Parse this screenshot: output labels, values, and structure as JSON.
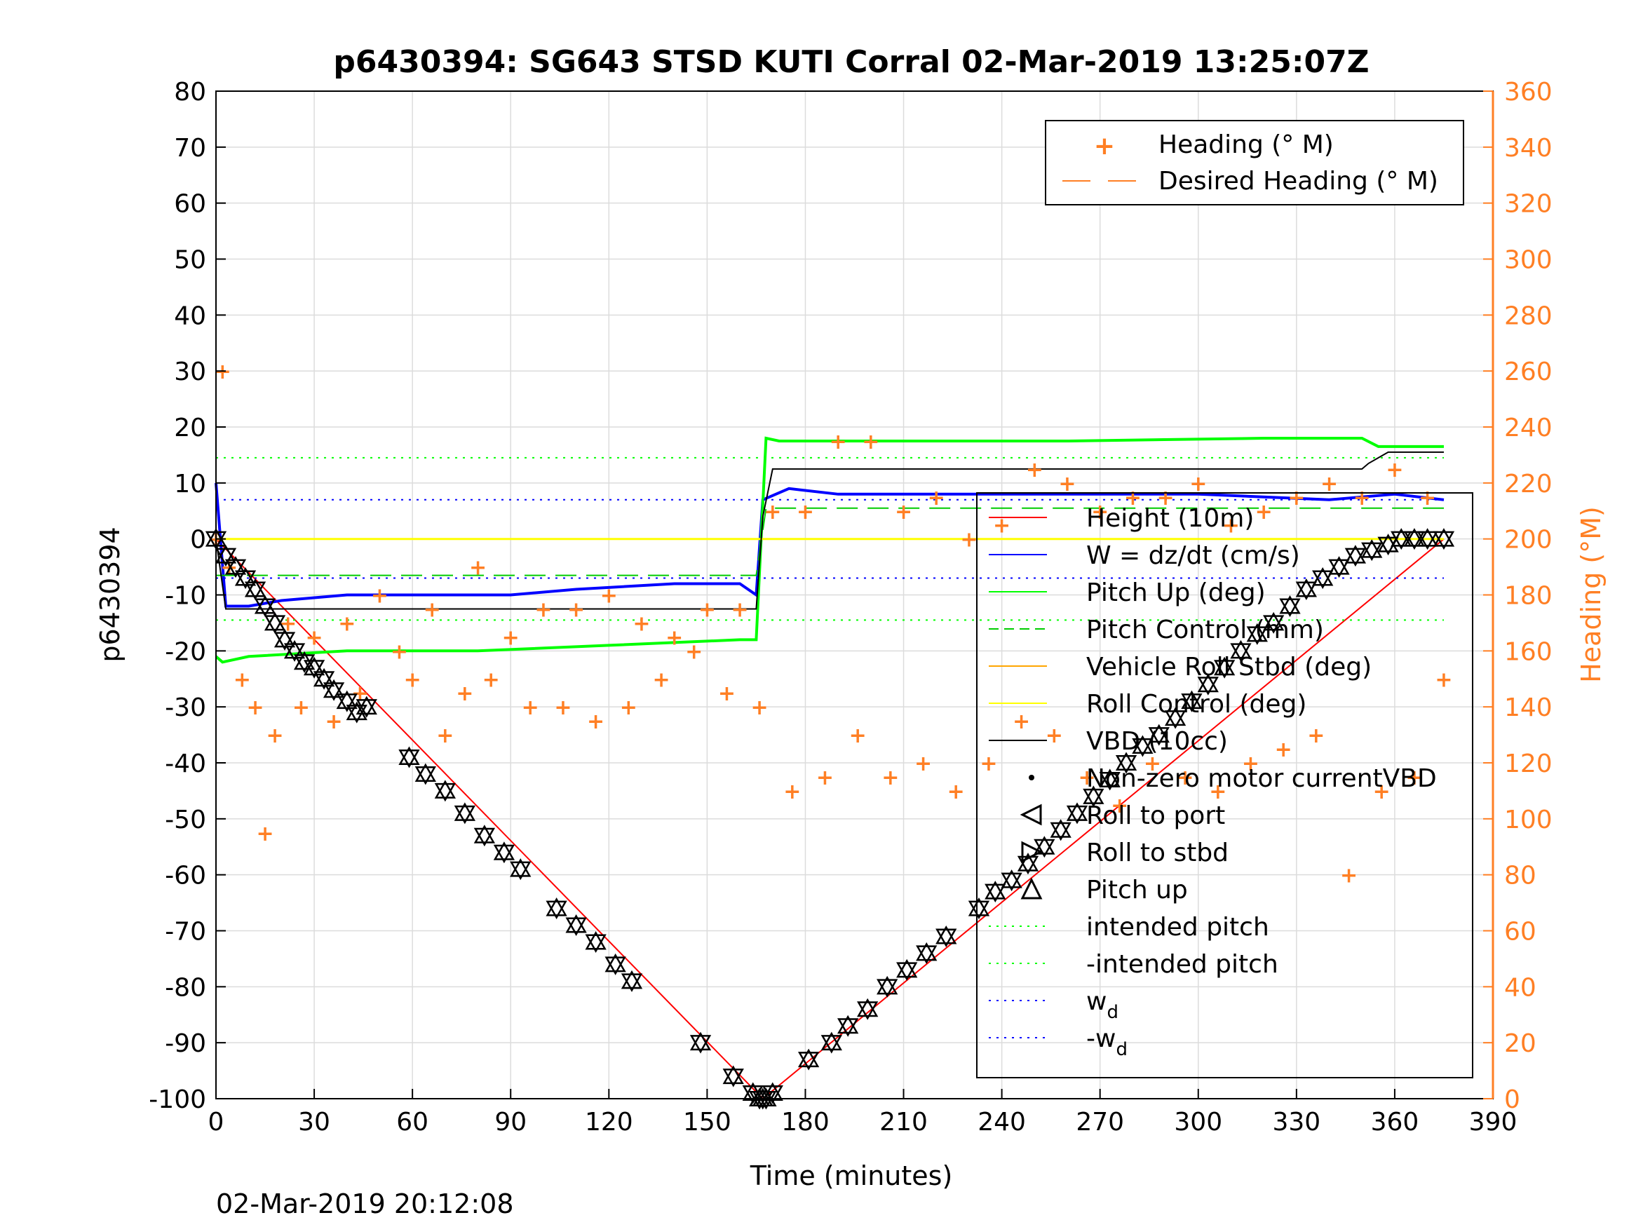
{
  "chart_data": {
    "type": "line",
    "title": "p6430394: SG643 STSD KUTI Corral 02-Mar-2019 13:25:07Z",
    "xlabel": "Time (minutes)",
    "ylabel_left": "p6430394",
    "ylabel_right": "Heading (°M)",
    "footer_timestamp": "02-Mar-2019 20:12:08",
    "xlim": [
      0,
      390
    ],
    "ylim_left": [
      -100,
      80
    ],
    "ylim_right": [
      0,
      360
    ],
    "x_ticks": [
      "0",
      "30",
      "60",
      "90",
      "120",
      "150",
      "180",
      "210",
      "240",
      "270",
      "300",
      "330",
      "360",
      "390"
    ],
    "y_ticks_left": [
      "80",
      "70",
      "60",
      "50",
      "40",
      "30",
      "20",
      "10",
      "0",
      "-10",
      "-20",
      "-30",
      "-40",
      "-50",
      "-60",
      "-70",
      "-80",
      "-90",
      "-100"
    ],
    "y_ticks_right": [
      "360",
      "340",
      "320",
      "300",
      "280",
      "260",
      "240",
      "220",
      "200",
      "180",
      "160",
      "140",
      "120",
      "100",
      "80",
      "60",
      "40",
      "20",
      "0"
    ],
    "grid": true,
    "colors": {
      "height": "#ff0000",
      "w": "#0000ff",
      "pitch_up": "#00cc00",
      "pitch_control": "#00ff00",
      "roll": "#ffa500",
      "roll_control": "#ffff00",
      "vbd": "#000000",
      "heading": "#ff7f24",
      "right_axis": "#ff7f24"
    },
    "legend_top": {
      "placement": "top-right",
      "entries": [
        "Heading (° M)",
        "Desired Heading (° M)"
      ]
    },
    "legend_main": {
      "placement": "right",
      "entries": [
        {
          "label": "Height (10m)",
          "sub": ""
        },
        {
          "label": "W = dz/dt (cm/s)",
          "sub": ""
        },
        {
          "label": "Pitch Up (deg)",
          "sub": ""
        },
        {
          "label": "Pitch Control (mm)",
          "sub": ""
        },
        {
          "label": "Vehicle Roll Stbd (deg)",
          "sub": ""
        },
        {
          "label": "Roll Control (deg)",
          "sub": ""
        },
        {
          "label": "VBD (10cc)",
          "sub": ""
        },
        {
          "label": "Non-zero motor currentVBD",
          "sub": ""
        },
        {
          "label": "Roll to port",
          "sub": ""
        },
        {
          "label": "Roll to stbd",
          "sub": ""
        },
        {
          "label": "Pitch up",
          "sub": ""
        },
        {
          "label": "intended pitch",
          "sub": ""
        },
        {
          "label": "-intended pitch",
          "sub": ""
        },
        {
          "label": "w",
          "sub": "d"
        },
        {
          "label": "-w",
          "sub": "d"
        }
      ]
    },
    "series": [
      {
        "name": "Height (10m)",
        "axis": "left",
        "x": [
          0,
          167,
          375
        ],
        "y": [
          0,
          -100,
          0
        ]
      },
      {
        "name": "W = dz/dt (cm/s)",
        "axis": "left",
        "x": [
          0,
          3,
          10,
          20,
          40,
          60,
          90,
          110,
          140,
          160,
          165,
          167,
          175,
          190,
          220,
          260,
          300,
          340,
          360,
          375
        ],
        "y": [
          10,
          -12,
          -12,
          -11,
          -10,
          -10,
          -10,
          -9,
          -8,
          -8,
          -10,
          7,
          9,
          8,
          8,
          8,
          8,
          7,
          8,
          7
        ]
      },
      {
        "name": "Pitch Up (deg)",
        "axis": "left",
        "x": [
          0,
          2,
          10,
          40,
          80,
          120,
          160,
          165,
          168,
          172,
          200,
          260,
          320,
          350,
          355,
          375
        ],
        "y": [
          -21,
          -22,
          -21,
          -20,
          -20,
          -19,
          -18,
          -18,
          18,
          17.5,
          17.5,
          17.5,
          18,
          18,
          16.5,
          16.5
        ]
      },
      {
        "name": "Pitch Control (mm)",
        "axis": "left",
        "x": [
          0,
          165,
          168,
          375
        ],
        "y": [
          -6.5,
          -6.5,
          5.5,
          5.5
        ]
      },
      {
        "name": "Roll Control (deg)",
        "axis": "left",
        "x": [
          0,
          375
        ],
        "y": [
          0,
          0
        ]
      },
      {
        "name": "VBD (10cc)",
        "axis": "left",
        "x": [
          0,
          3,
          165,
          167,
          170,
          290,
          350,
          352,
          358,
          375
        ],
        "y": [
          0,
          -12.5,
          -12.5,
          4,
          12.5,
          12.5,
          12.5,
          13.5,
          15.5,
          15.5
        ]
      },
      {
        "name": "intended pitch",
        "axis": "left",
        "x": [
          0,
          375
        ],
        "y": [
          14.5,
          14.5
        ]
      },
      {
        "name": "-intended pitch",
        "axis": "left",
        "x": [
          0,
          375
        ],
        "y": [
          -14.5,
          -14.5
        ]
      },
      {
        "name": "wd",
        "axis": "left",
        "x": [
          0,
          375
        ],
        "y": [
          7,
          7
        ]
      },
      {
        "name": "-wd",
        "axis": "left",
        "x": [
          0,
          375
        ],
        "y": [
          -7,
          -7
        ]
      },
      {
        "name": "Heading (° M)",
        "axis": "right",
        "x": [
          0,
          2,
          4,
          8,
          12,
          15,
          18,
          22,
          26,
          30,
          36,
          40,
          44,
          50,
          56,
          60,
          66,
          70,
          76,
          80,
          84,
          90,
          96,
          100,
          106,
          110,
          116,
          120,
          126,
          130,
          136,
          140,
          146,
          150,
          156,
          160,
          166,
          170,
          176,
          180,
          186,
          190,
          196,
          200,
          206,
          210,
          216,
          220,
          226,
          230,
          236,
          240,
          246,
          250,
          256,
          260,
          266,
          270,
          276,
          280,
          286,
          290,
          296,
          300,
          306,
          310,
          316,
          320,
          326,
          330,
          336,
          340,
          346,
          350,
          356,
          360,
          366,
          370,
          375
        ],
        "y": [
          200,
          260,
          190,
          150,
          140,
          95,
          130,
          170,
          140,
          165,
          135,
          170,
          145,
          180,
          160,
          150,
          175,
          130,
          145,
          190,
          150,
          165,
          140,
          175,
          140,
          175,
          135,
          180,
          140,
          170,
          150,
          165,
          160,
          175,
          145,
          175,
          140,
          210,
          110,
          210,
          115,
          235,
          130,
          235,
          115,
          210,
          120,
          215,
          110,
          200,
          120,
          205,
          135,
          225,
          130,
          220,
          115,
          210,
          105,
          215,
          120,
          215,
          115,
          220,
          110,
          205,
          120,
          210,
          125,
          215,
          130,
          220,
          80,
          215,
          110,
          225,
          115,
          215,
          150
        ]
      }
    ],
    "markers": {
      "description": "Roll to port / Roll to stbd triangle markers along the Height trace",
      "x": [
        0,
        3,
        6,
        9,
        12,
        15,
        18,
        21,
        24,
        27,
        30,
        33,
        36,
        40,
        43,
        46,
        59,
        64,
        70,
        76,
        82,
        88,
        93,
        104,
        110,
        116,
        122,
        127,
        148,
        158,
        164,
        166,
        167,
        168,
        170,
        181,
        188,
        193,
        199,
        205,
        211,
        217,
        223,
        233,
        238,
        243,
        248,
        253,
        258,
        263,
        268,
        273,
        278,
        283,
        288,
        293,
        298,
        303,
        308,
        313,
        318,
        323,
        328,
        333,
        338,
        343,
        348,
        353,
        358,
        362,
        366,
        370,
        375
      ],
      "y": [
        0,
        -3,
        -5,
        -7,
        -9,
        -12,
        -15,
        -18,
        -20,
        -22,
        -23,
        -25,
        -27,
        -29,
        -31,
        -30,
        -39,
        -42,
        -45,
        -49,
        -53,
        -56,
        -59,
        -66,
        -69,
        -72,
        -76,
        -79,
        -90,
        -96,
        -99,
        -100,
        -100,
        -100,
        -99,
        -93,
        -90,
        -87,
        -84,
        -80,
        -77,
        -74,
        -71,
        -66,
        -63,
        -61,
        -58,
        -55,
        -52,
        -49,
        -46,
        -43,
        -40,
        -37,
        -35,
        -32,
        -29,
        -26,
        -23,
        -20,
        -17,
        -15,
        -12,
        -9,
        -7,
        -5,
        -3,
        -2,
        -1,
        0,
        0,
        0,
        0
      ]
    }
  }
}
